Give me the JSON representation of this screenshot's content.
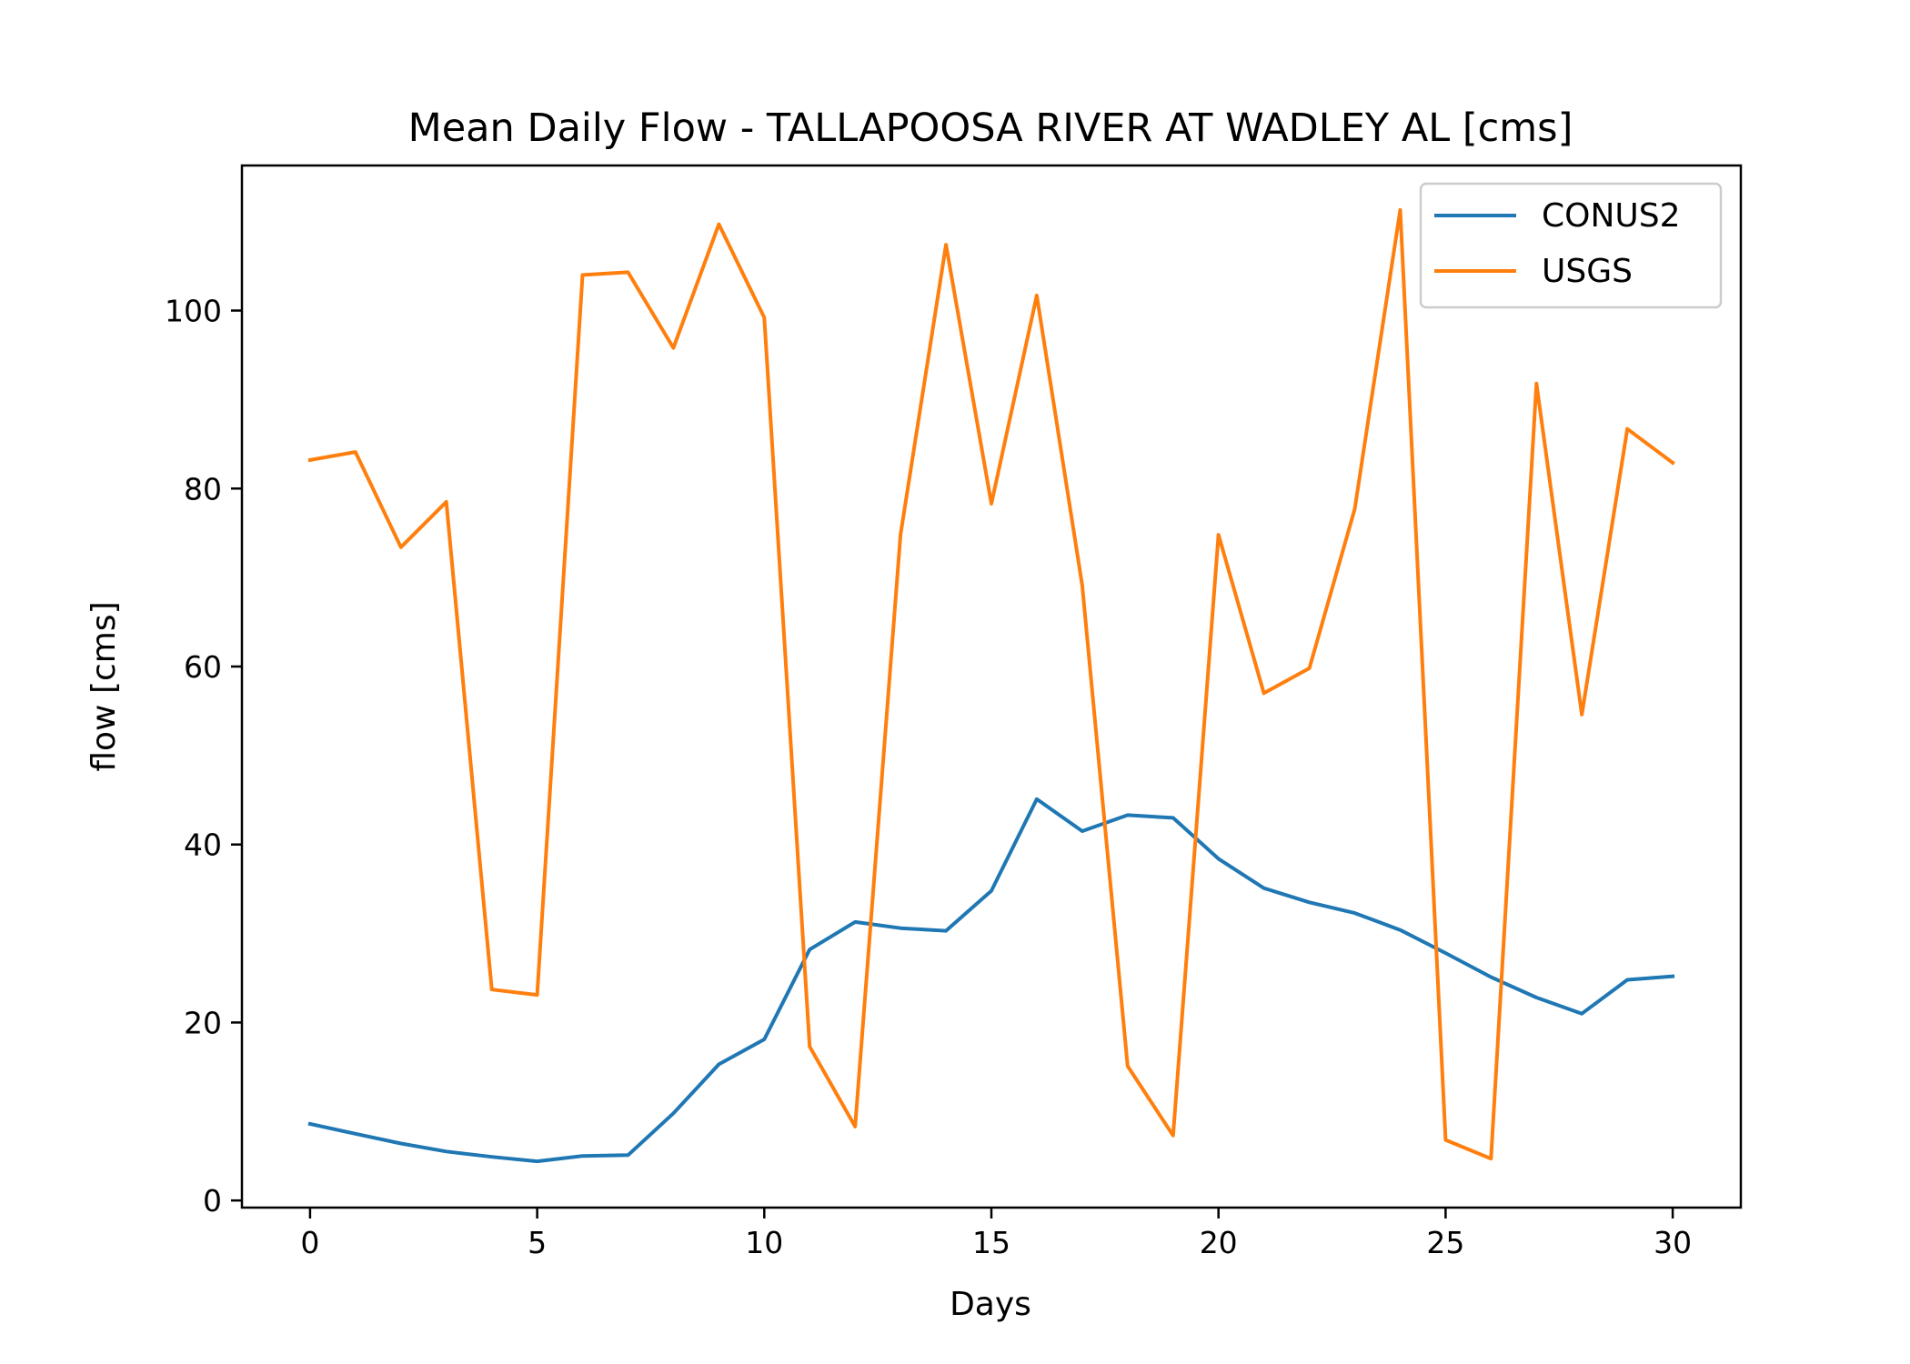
{
  "chart_data": {
    "type": "line",
    "title": "Mean Daily Flow - TALLAPOOSA RIVER AT WADLEY AL [cms]",
    "xlabel": "Days",
    "ylabel": "flow [cms]",
    "xlim": [
      -1.5,
      31.5
    ],
    "ylim": [
      -0.8,
      116.3
    ],
    "xticks": [
      0,
      5,
      10,
      15,
      20,
      25,
      30
    ],
    "xtick_labels": [
      "0",
      "5",
      "10",
      "15",
      "20",
      "25",
      "30"
    ],
    "yticks": [
      0,
      20,
      40,
      60,
      80,
      100
    ],
    "ytick_labels": [
      "0",
      "20",
      "40",
      "60",
      "80",
      "100"
    ],
    "grid": false,
    "legend_position": "upper right",
    "x": [
      0,
      1,
      2,
      3,
      4,
      5,
      6,
      7,
      8,
      9,
      10,
      11,
      12,
      13,
      14,
      15,
      16,
      17,
      18,
      19,
      20,
      21,
      22,
      23,
      24,
      25,
      26,
      27,
      28,
      29,
      30
    ],
    "series": [
      {
        "name": "CONUS2",
        "color": "#1f77b4",
        "values": [
          8.6,
          7.5,
          6.4,
          5.5,
          4.9,
          4.4,
          5.0,
          5.1,
          9.8,
          15.3,
          18.1,
          28.2,
          31.3,
          30.6,
          30.3,
          34.8,
          45.1,
          41.5,
          43.3,
          43.0,
          38.4,
          35.1,
          33.5,
          32.3,
          30.4,
          27.8,
          25.1,
          22.8,
          21.0,
          24.8,
          25.2
        ]
      },
      {
        "name": "USGS",
        "color": "#ff7f0e",
        "values": [
          83.2,
          84.1,
          73.4,
          78.5,
          23.7,
          23.1,
          104.0,
          104.3,
          95.8,
          109.7,
          99.2,
          17.3,
          8.3,
          74.8,
          107.4,
          78.3,
          101.7,
          69.1,
          15.1,
          7.3,
          74.8,
          57.0,
          59.8,
          77.7,
          111.3,
          6.8,
          4.7,
          91.8,
          54.6,
          86.7,
          82.9
        ]
      }
    ]
  }
}
